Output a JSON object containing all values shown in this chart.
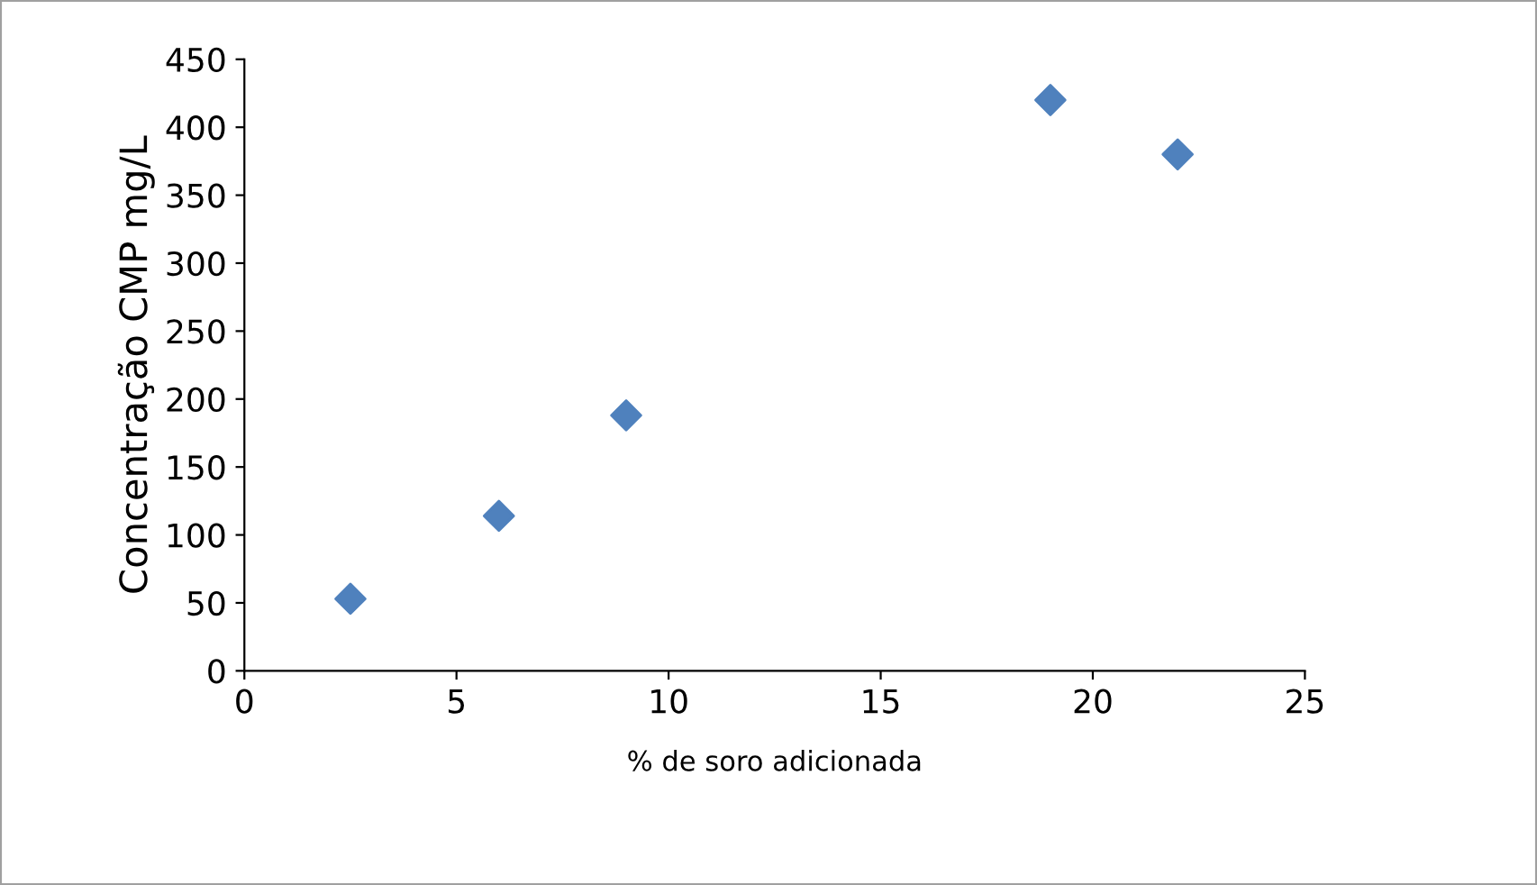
{
  "chart_data": {
    "type": "scatter",
    "xlabel": "% de soro adicionada",
    "ylabel": "Concentração CMP mg/L",
    "x": [
      2.5,
      6,
      9,
      19,
      22
    ],
    "series": [
      {
        "color": "#4f81bd",
        "values": [
          53,
          114,
          188,
          420,
          380
        ]
      }
    ],
    "xlim": [
      0,
      25
    ],
    "xticks": [
      0,
      5,
      10,
      15,
      20,
      25
    ],
    "ylim": [
      0,
      450
    ],
    "yticks": [
      0,
      50,
      100,
      150,
      200,
      250,
      300,
      350,
      400,
      450
    ],
    "marker": "diamond",
    "grid": false,
    "legend": false
  }
}
